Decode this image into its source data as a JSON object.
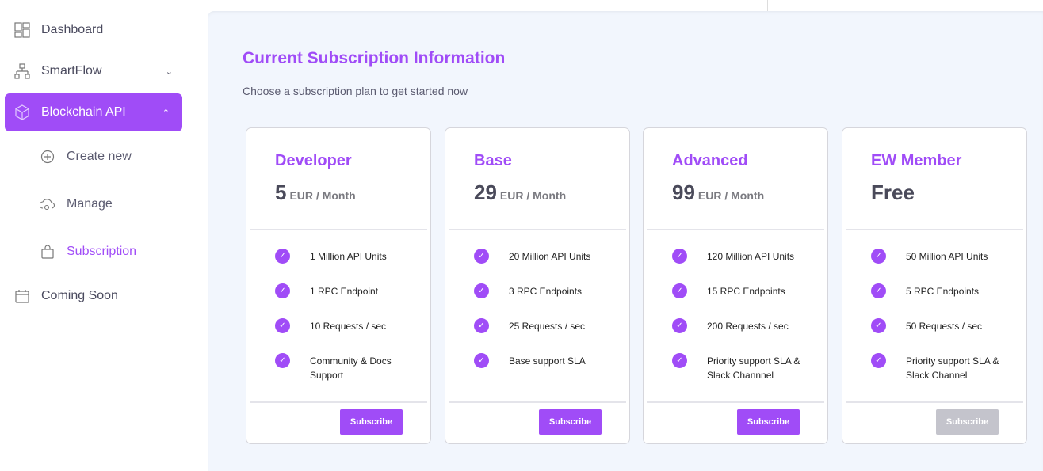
{
  "sidebar": {
    "items": [
      {
        "label": "Dashboard",
        "icon": "dashboard-icon"
      },
      {
        "label": "SmartFlow",
        "icon": "flow-icon"
      },
      {
        "label": "Blockchain API",
        "icon": "cube-icon"
      },
      {
        "label": "Create new",
        "icon": "plus-circle-icon"
      },
      {
        "label": "Manage",
        "icon": "cloud-gear-icon"
      },
      {
        "label": "Subscription",
        "icon": "bag-icon"
      },
      {
        "label": "Coming Soon",
        "icon": "calendar-icon"
      }
    ]
  },
  "main": {
    "title": "Current Subscription Information",
    "subtitle": "Choose a subscription plan to get started now"
  },
  "plans": [
    {
      "name": "Developer",
      "price": "5",
      "unit": "EUR / Month",
      "features": [
        "1 Million API Units",
        "1 RPC Endpoint",
        "10 Requests / sec",
        "Community & Docs Support"
      ],
      "button": "Subscribe",
      "enabled": true
    },
    {
      "name": "Base",
      "price": "29",
      "unit": "EUR / Month",
      "features": [
        "20 Million API Units",
        "3 RPC Endpoints",
        "25 Requests / sec",
        "Base support SLA"
      ],
      "button": "Subscribe",
      "enabled": true
    },
    {
      "name": "Advanced",
      "price": "99",
      "unit": "EUR / Month",
      "features": [
        "120 Million API Units",
        "15 RPC Endpoints",
        "200 Requests / sec",
        "Priority support SLA & Slack Channnel"
      ],
      "button": "Subscribe",
      "enabled": true
    },
    {
      "name": "EW Member",
      "price": "Free",
      "unit": "",
      "features": [
        "50 Million API Units",
        "5 RPC Endpoints",
        "50 Requests / sec",
        "Priority support SLA & Slack Channel"
      ],
      "button": "Subscribe",
      "enabled": false
    }
  ],
  "colors": {
    "accent": "#a04cf7",
    "disabled": "#c4c4cc",
    "background": "#f2f6fd"
  }
}
